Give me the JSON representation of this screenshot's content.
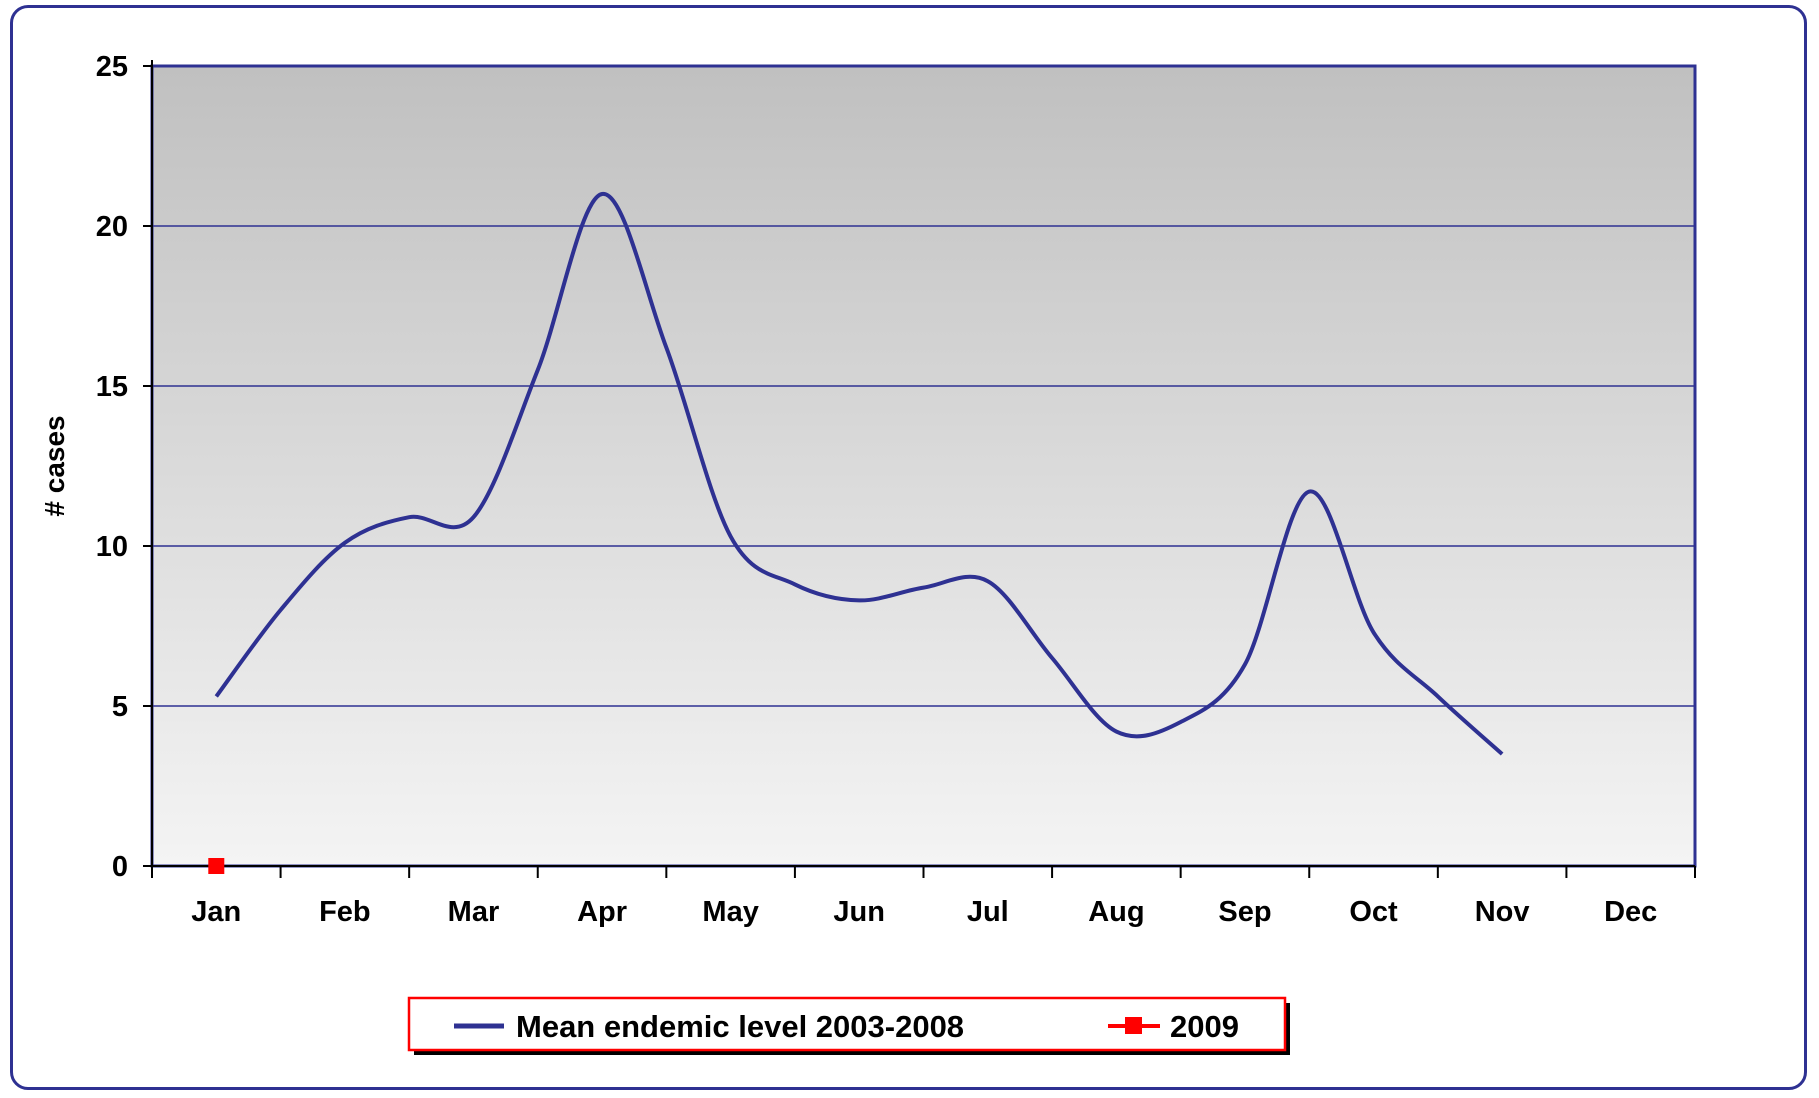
{
  "chart_data": {
    "type": "line",
    "title": "",
    "xlabel": "",
    "ylabel": "# cases",
    "ylim": [
      0,
      25
    ],
    "yticks": [
      0,
      5,
      10,
      15,
      20,
      25
    ],
    "categories": [
      "Jan",
      "Feb",
      "Mar",
      "Apr",
      "May",
      "Jun",
      "Jul",
      "Aug",
      "Sep",
      "Oct",
      "Nov",
      "Dec"
    ],
    "grid": true,
    "legend_position": "bottom",
    "series": [
      {
        "name": "Mean endemic level 2003-2008",
        "color": "#2E3192",
        "smooth": true,
        "marker": "none",
        "x": [
          0,
          0.5,
          1,
          1.5,
          2,
          2.5,
          3,
          3.5,
          4,
          4.5,
          5,
          5.5,
          6,
          6.5,
          7,
          7.5,
          8,
          8.5,
          9,
          9.5,
          10,
          10.5,
          11
        ],
        "y": [
          5.3,
          8.0,
          10.1,
          10.9,
          10.9,
          15.5,
          21.0,
          16.2,
          10.3,
          8.8,
          8.3,
          8.7,
          8.9,
          6.5,
          4.2,
          4.5,
          6.3,
          11.7,
          7.3,
          5.3,
          3.5,
          3.5,
          3.5
        ],
        "visible_until_index": 20
      },
      {
        "name": "2009",
        "color": "#FF0000",
        "marker": "square",
        "x": [
          0
        ],
        "y": [
          0
        ]
      }
    ]
  }
}
